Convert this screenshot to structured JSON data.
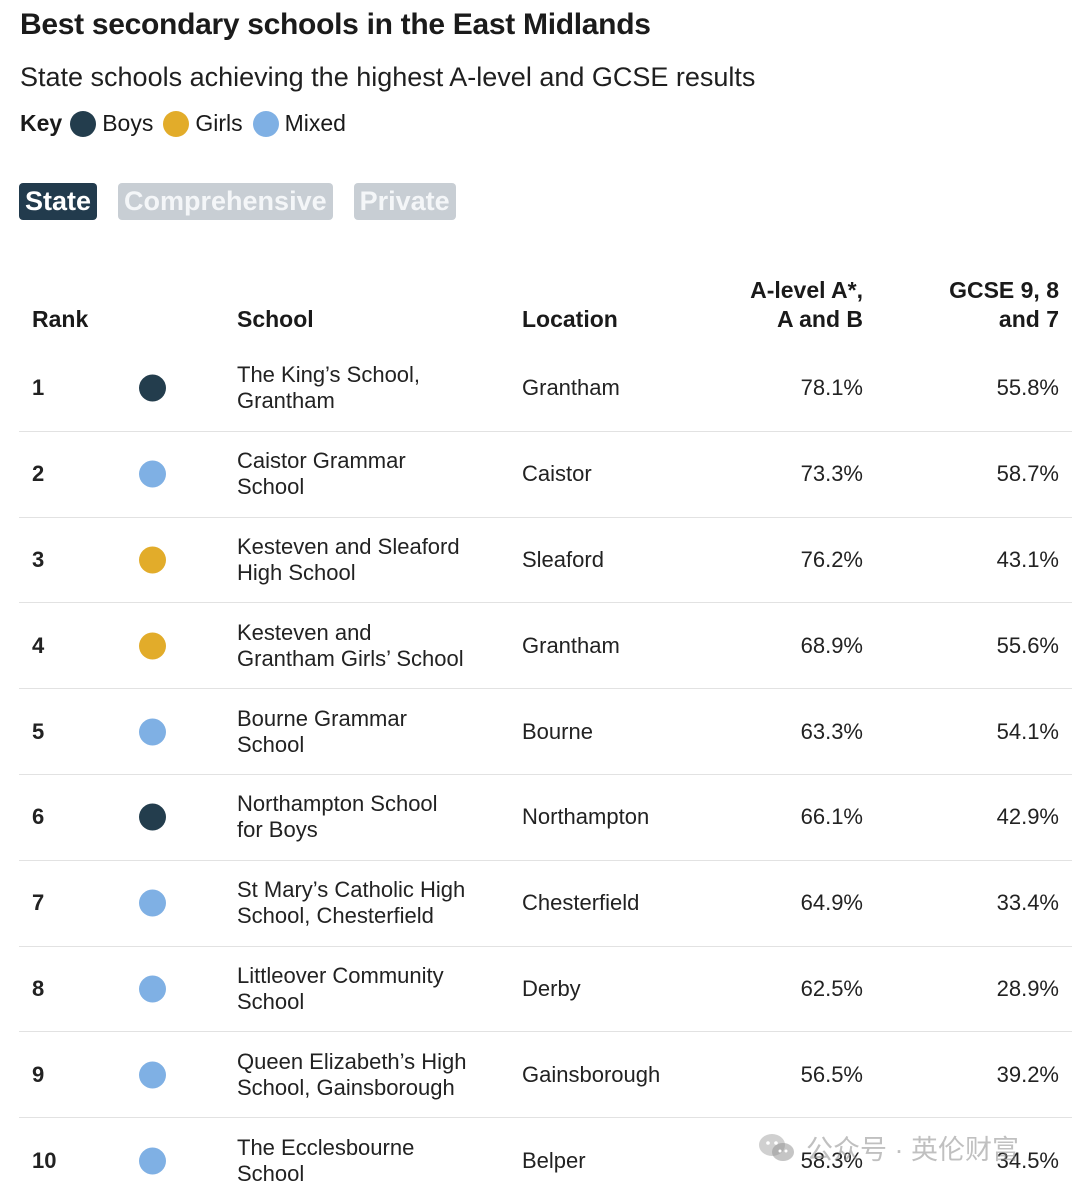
{
  "header": {
    "title": "Best secondary schools in the East Midlands",
    "subtitle": "State schools achieving the highest A-level and GCSE results"
  },
  "key": {
    "label": "Key",
    "items": [
      {
        "label": "Boys",
        "color": "#233d4d"
      },
      {
        "label": "Girls",
        "color": "#e2ac2a"
      },
      {
        "label": "Mixed",
        "color": "#7fb0e4"
      }
    ]
  },
  "tabs": [
    {
      "label": "State",
      "active": true
    },
    {
      "label": "Comprehensive",
      "active": false
    },
    {
      "label": "Private",
      "active": false
    }
  ],
  "table": {
    "columns": {
      "rank": "Rank",
      "school": "School",
      "location": "Location",
      "alevel_line1": "A-level A*,",
      "alevel_line2": "A and B",
      "gcse_line1": "GCSE 9, 8",
      "gcse_line2": "and 7"
    },
    "rows": [
      {
        "rank": "1",
        "type": "Boys",
        "school_line1": "The King’s School,",
        "school_line2": "Grantham",
        "location": "Grantham",
        "alevel": "78.1%",
        "gcse": "55.8%"
      },
      {
        "rank": "2",
        "type": "Mixed",
        "school_line1": "Caistor Grammar",
        "school_line2": "School",
        "location": "Caistor",
        "alevel": "73.3%",
        "gcse": "58.7%"
      },
      {
        "rank": "3",
        "type": "Girls",
        "school_line1": "Kesteven and Sleaford",
        "school_line2": "High School",
        "location": "Sleaford",
        "alevel": "76.2%",
        "gcse": "43.1%"
      },
      {
        "rank": "4",
        "type": "Girls",
        "school_line1": "Kesteven and",
        "school_line2": "Grantham Girls’ School",
        "location": "Grantham",
        "alevel": "68.9%",
        "gcse": "55.6%"
      },
      {
        "rank": "5",
        "type": "Mixed",
        "school_line1": "Bourne Grammar",
        "school_line2": "School",
        "location": "Bourne",
        "alevel": "63.3%",
        "gcse": "54.1%"
      },
      {
        "rank": "6",
        "type": "Boys",
        "school_line1": "Northampton School",
        "school_line2": "for Boys",
        "location": "Northampton",
        "alevel": "66.1%",
        "gcse": "42.9%"
      },
      {
        "rank": "7",
        "type": "Mixed",
        "school_line1": "St Mary’s Catholic High",
        "school_line2": "School, Chesterfield",
        "location": "Chesterfield",
        "alevel": "64.9%",
        "gcse": "33.4%"
      },
      {
        "rank": "8",
        "type": "Mixed",
        "school_line1": "Littleover Community",
        "school_line2": "School",
        "location": "Derby",
        "alevel": "62.5%",
        "gcse": "28.9%"
      },
      {
        "rank": "9",
        "type": "Mixed",
        "school_line1": "Queen Elizabeth’s High",
        "school_line2": "School, Gainsborough",
        "location": "Gainsborough",
        "alevel": "56.5%",
        "gcse": "39.2%"
      },
      {
        "rank": "10",
        "type": "Mixed",
        "school_line1": "The Ecclesbourne",
        "school_line2": "School",
        "location": "Belper",
        "alevel": "58.3%",
        "gcse": "34.5%"
      }
    ]
  },
  "watermark": {
    "text": "公众号 · 英伦财富",
    "icon": "wechat-icon"
  }
}
